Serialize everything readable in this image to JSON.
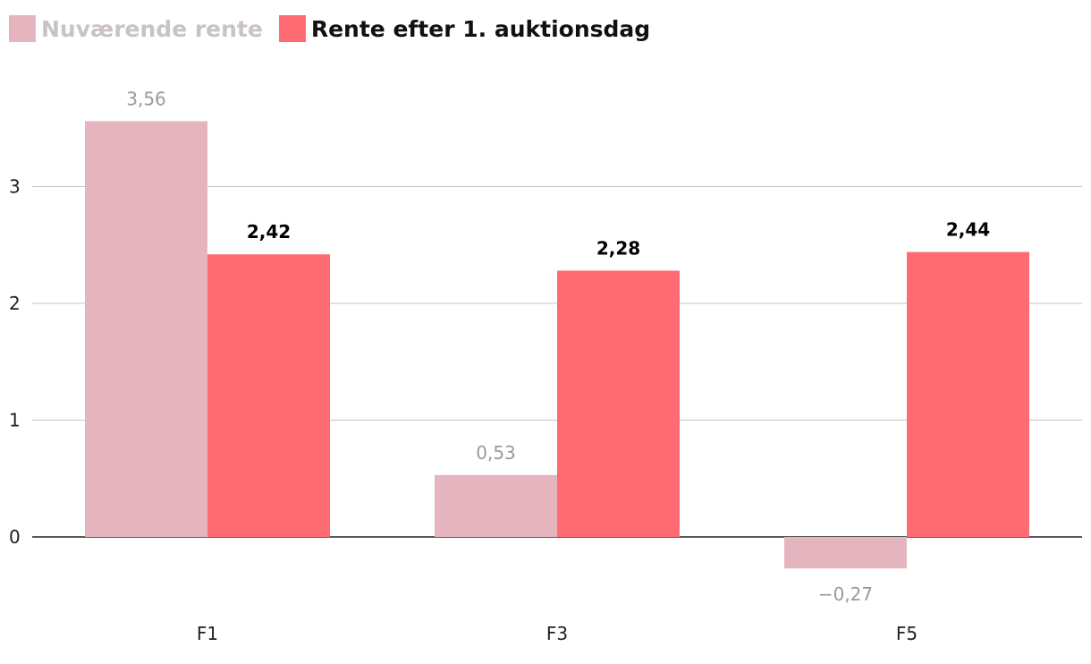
{
  "chart_data": {
    "type": "bar",
    "categories": [
      "F1",
      "F3",
      "F5"
    ],
    "series": [
      {
        "name": "Nuværende rente",
        "values": [
          3.56,
          0.53,
          -0.27
        ],
        "labels": [
          "3,56",
          "0,53",
          "−0,27"
        ],
        "color": "#e4b5be"
      },
      {
        "name": "Rente efter 1. auktionsdag",
        "values": [
          2.42,
          2.28,
          2.44
        ],
        "labels": [
          "2,42",
          "2,28",
          "2,44"
        ],
        "color": "#ff6b72"
      }
    ],
    "yticks": [
      0,
      1,
      2,
      3
    ],
    "ylim": [
      -0.5,
      3.9
    ],
    "grid": true,
    "legend_position": "top-left",
    "title": "",
    "xlabel": "",
    "ylabel": ""
  }
}
